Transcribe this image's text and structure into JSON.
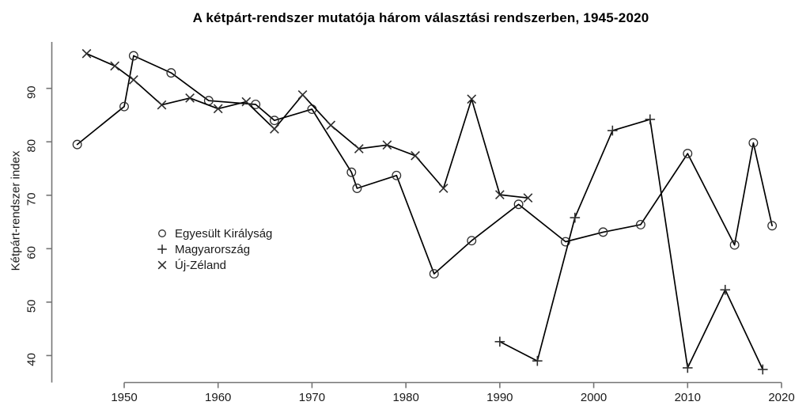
{
  "chart_data": {
    "type": "line",
    "title": "A kétpárt-rendszer mutatója három választási rendszerben, 1945-2020",
    "xlabel": "",
    "ylabel": "Kétpárt-rendszer index",
    "x_ticks": [
      1950,
      1960,
      1970,
      1980,
      1990,
      2000,
      2010,
      2020
    ],
    "y_ticks": [
      40,
      50,
      60,
      70,
      80,
      90
    ],
    "xlim": [
      1943.5,
      2021
    ],
    "ylim": [
      35,
      99
    ],
    "grid": false,
    "legend_position": "left-center",
    "series": [
      {
        "name": "Egyesült Királyság",
        "marker": "circle",
        "color": "#000000",
        "x": [
          1945,
          1950,
          1951,
          1955,
          1959,
          1964,
          1966,
          1970,
          1974.2,
          1974.8,
          1979,
          1983,
          1987,
          1992,
          1997,
          2001,
          2005,
          2010,
          2015,
          2017,
          2019
        ],
        "values": [
          79.5,
          86.6,
          96.1,
          92.9,
          87.7,
          87.0,
          84.0,
          86.1,
          74.3,
          71.3,
          73.7,
          55.3,
          61.5,
          68.3,
          61.3,
          63.1,
          64.5,
          77.8,
          60.7,
          79.8,
          64.3
        ]
      },
      {
        "name": "Magyarország",
        "marker": "plus",
        "color": "#000000",
        "x": [
          1990,
          1994,
          1998,
          2002,
          2006,
          2010,
          2014,
          2018
        ],
        "values": [
          42.6,
          39.0,
          65.8,
          82.1,
          84.2,
          37.7,
          52.3,
          37.4
        ]
      },
      {
        "name": "Új-Zéland",
        "marker": "x",
        "color": "#000000",
        "x": [
          1946,
          1949,
          1951,
          1954,
          1957,
          1960,
          1963,
          1966,
          1969,
          1972,
          1975,
          1978,
          1981,
          1984,
          1987,
          1990,
          1993
        ],
        "values": [
          96.5,
          94.2,
          91.6,
          86.9,
          88.2,
          86.2,
          87.5,
          82.4,
          88.8,
          83.1,
          78.7,
          79.4,
          77.4,
          71.3,
          88.0,
          70.1,
          69.5
        ]
      }
    ],
    "axis_color": "#757575",
    "label_color": "#1a1a1a",
    "line_color": "#000000"
  }
}
